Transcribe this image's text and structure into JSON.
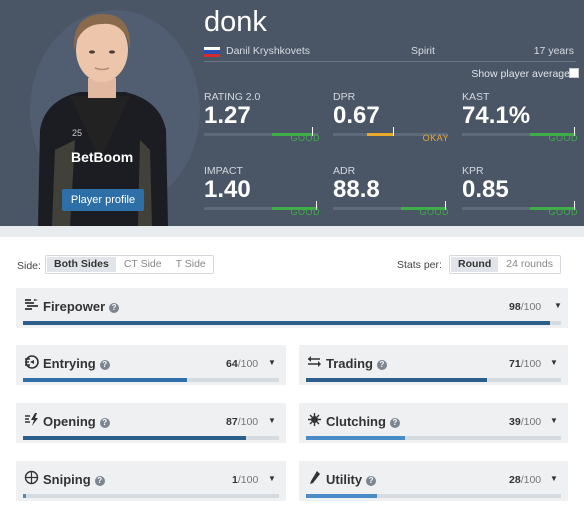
{
  "player": {
    "nickname": "donk",
    "real_name": "Danil Kryshkovets",
    "team": "Spirit",
    "age": "17 years",
    "profile_button": "Player profile",
    "show_average_label": "Show player average",
    "shirt_sponsor": "BetBoom",
    "shirt_number": "25"
  },
  "stats": [
    {
      "label": "RATING 2.0",
      "value": "1.27",
      "rating": "GOOD",
      "fill": 0.95,
      "tick": 0.95,
      "color": "#3fae49"
    },
    {
      "label": "DPR",
      "value": "0.67",
      "rating": "OKAY",
      "fill": 0.5,
      "tick": 0.53,
      "color": "#e8a92c"
    },
    {
      "label": "KAST",
      "value": "74.1%",
      "rating": "GOOD",
      "fill": 0.85,
      "tick": 0.98,
      "color": "#3fae49"
    },
    {
      "label": "IMPACT",
      "value": "1.40",
      "rating": "GOOD",
      "fill": 0.85,
      "tick": 0.98,
      "color": "#3fae49"
    },
    {
      "label": "ADR",
      "value": "88.8",
      "rating": "GOOD",
      "fill": 0.85,
      "tick": 0.98,
      "color": "#3fae49"
    },
    {
      "label": "KPR",
      "value": "0.85",
      "rating": "GOOD",
      "fill": 0.85,
      "tick": 0.98,
      "color": "#3fae49"
    }
  ],
  "filters": {
    "side_label": "Side:",
    "side_options": [
      "Both Sides",
      "CT Side",
      "T Side"
    ],
    "per_label": "Stats per:",
    "per_options": [
      "Round",
      "24 rounds"
    ]
  },
  "categories": [
    {
      "name": "Firepower",
      "score": "98",
      "max": "/100",
      "value": 98,
      "color": "#2b5f8a",
      "icon": "firepower-icon"
    },
    {
      "name": "Entrying",
      "score": "64",
      "max": "/100",
      "value": 64,
      "color": "#2f6fa8",
      "icon": "entrying-icon"
    },
    {
      "name": "Trading",
      "score": "71",
      "max": "/100",
      "value": 71,
      "color": "#2b5f8a",
      "icon": "trading-icon"
    },
    {
      "name": "Opening",
      "score": "87",
      "max": "/100",
      "value": 87,
      "color": "#2b5f8a",
      "icon": "opening-icon"
    },
    {
      "name": "Clutching",
      "score": "39",
      "max": "/100",
      "value": 39,
      "color": "#4a8cc8",
      "icon": "clutching-icon"
    },
    {
      "name": "Sniping",
      "score": "1",
      "max": "/100",
      "value": 1,
      "color": "#4a8cc8",
      "icon": "sniping-icon"
    },
    {
      "name": "Utility",
      "score": "28",
      "max": "/100",
      "value": 28,
      "color": "#4a8cc8",
      "icon": "utility-icon"
    }
  ]
}
